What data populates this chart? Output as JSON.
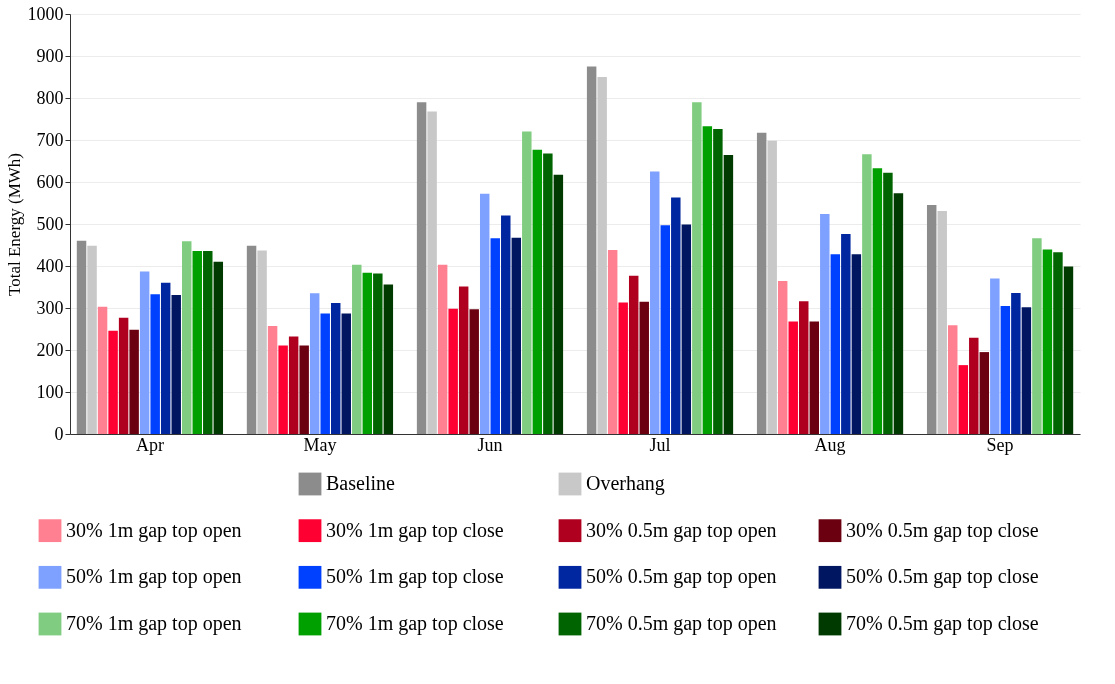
{
  "chart_data": {
    "type": "bar",
    "ylabel": "Total Energy (MWh)",
    "categories": [
      "Apr",
      "May",
      "Jun",
      "Jul",
      "Aug",
      "Sep"
    ],
    "ylim": [
      0,
      1000
    ],
    "yticks": [
      0,
      100,
      200,
      300,
      400,
      500,
      600,
      700,
      800,
      900,
      1000
    ],
    "grid": "y",
    "legend": "bottom",
    "series": [
      {
        "name": "Baseline",
        "color": "#8c8c8c",
        "values": [
          460,
          448,
          790,
          875,
          717,
          545
        ]
      },
      {
        "name": "Overhang",
        "color": "#c8c8c8",
        "values": [
          448,
          437,
          768,
          850,
          698,
          531
        ]
      },
      {
        "name": "30% 1m gap top open",
        "color": "#ff8090",
        "values": [
          303,
          257,
          403,
          438,
          364,
          259
        ]
      },
      {
        "name": "30% 1m gap top close",
        "color": "#ff0033",
        "values": [
          246,
          211,
          298,
          313,
          268,
          164
        ]
      },
      {
        "name": "30% 0.5m gap top open",
        "color": "#b00020",
        "values": [
          277,
          232,
          351,
          377,
          316,
          229
        ]
      },
      {
        "name": "30% 0.5m gap top close",
        "color": "#6b0010",
        "values": [
          248,
          211,
          297,
          315,
          268,
          195
        ]
      },
      {
        "name": "50% 1m gap top open",
        "color": "#7ea0ff",
        "values": [
          387,
          335,
          572,
          625,
          524,
          370
        ]
      },
      {
        "name": "50% 1m gap top close",
        "color": "#0040ff",
        "values": [
          333,
          287,
          466,
          497,
          428,
          305
        ]
      },
      {
        "name": "50% 0.5m gap top open",
        "color": "#0026a0",
        "values": [
          360,
          312,
          520,
          563,
          476,
          336
        ]
      },
      {
        "name": "50% 0.5m gap top close",
        "color": "#001660",
        "values": [
          331,
          287,
          467,
          499,
          428,
          302
        ]
      },
      {
        "name": "70% 1m gap top open",
        "color": "#80cc80",
        "values": [
          459,
          403,
          720,
          790,
          666,
          466
        ]
      },
      {
        "name": "70% 1m gap top close",
        "color": "#00a000",
        "values": [
          436,
          384,
          677,
          733,
          633,
          439
        ]
      },
      {
        "name": "70% 0.5m gap top open",
        "color": "#006400",
        "values": [
          436,
          382,
          668,
          726,
          622,
          433
        ]
      },
      {
        "name": "70% 0.5m gap top close",
        "color": "#003a00",
        "values": [
          410,
          356,
          617,
          664,
          573,
          399
        ]
      }
    ]
  }
}
